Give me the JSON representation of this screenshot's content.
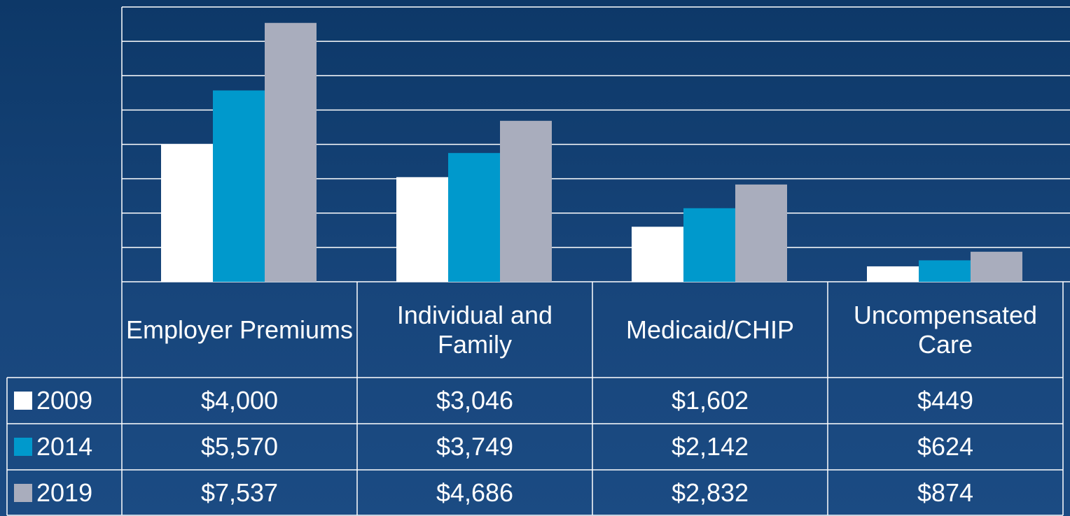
{
  "chart_data": {
    "type": "bar",
    "categories": [
      "Employer Premiums",
      "Individual and Family",
      "Medicaid/CHIP",
      "Uncompensated Care"
    ],
    "series": [
      {
        "name": "2009",
        "color": "#ffffff",
        "values": [
          4000,
          3046,
          1602,
          449
        ],
        "value_labels": [
          "$4,000",
          "$3,046",
          "$1,602",
          "$449"
        ]
      },
      {
        "name": "2014",
        "color": "#0099cc",
        "values": [
          5570,
          3749,
          2142,
          624
        ],
        "value_labels": [
          "$5,570",
          "$3,749",
          "$2,142",
          "$624"
        ]
      },
      {
        "name": "2019",
        "color": "#a9adbd",
        "values": [
          7537,
          4686,
          2832,
          874
        ],
        "value_labels": [
          "$7,537",
          "$4,686",
          "$2,832",
          "$874"
        ]
      }
    ],
    "ylim": [
      0,
      8000
    ],
    "yticks": [
      0,
      1000,
      2000,
      3000,
      4000,
      5000,
      6000,
      7000,
      8000
    ],
    "grid": true
  }
}
